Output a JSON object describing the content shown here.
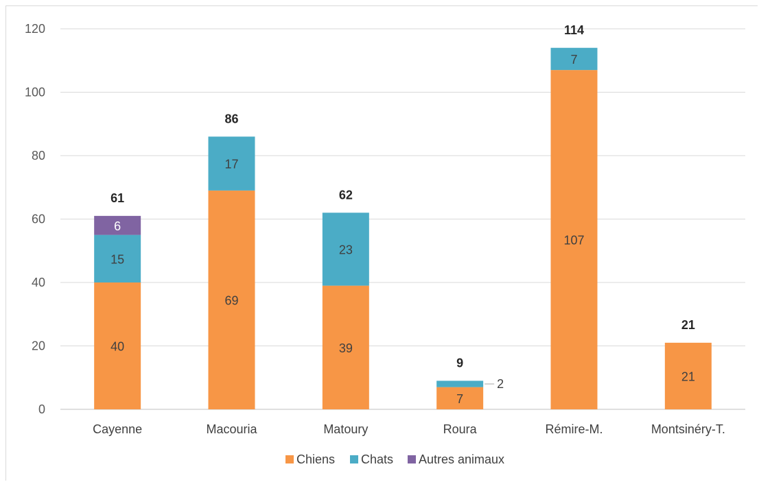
{
  "chart_data": {
    "type": "bar",
    "stacked": true,
    "categories": [
      "Cayenne",
      "Macouria",
      "Matoury",
      "Roura",
      "Rémire-M.",
      "Montsinéry-T."
    ],
    "series": [
      {
        "name": "Chiens",
        "values": [
          40,
          69,
          39,
          7,
          107,
          21
        ],
        "color": "#f79646"
      },
      {
        "name": "Chats",
        "values": [
          15,
          17,
          23,
          2,
          7,
          0
        ],
        "color": "#4bacc6"
      },
      {
        "name": "Autres animaux",
        "values": [
          6,
          0,
          0,
          0,
          0,
          0
        ],
        "color": "#8064a2"
      }
    ],
    "totals": [
      61,
      86,
      62,
      9,
      114,
      21
    ],
    "ylim": [
      0,
      120
    ],
    "yticks": [
      0,
      20,
      40,
      60,
      80,
      100,
      120
    ],
    "grid": true,
    "legend_position": "bottom"
  }
}
